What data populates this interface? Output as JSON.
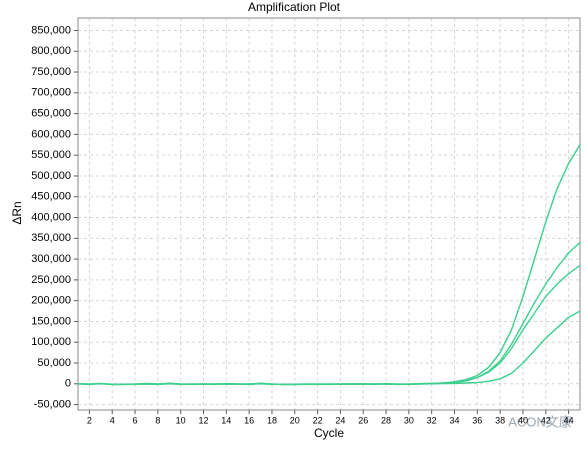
{
  "chart_data": {
    "type": "line",
    "title": "Amplification Plot",
    "x_label": "Cycle",
    "y_label": "ΔRn",
    "watermark": "ACON文康",
    "x": [
      1,
      2,
      3,
      4,
      5,
      6,
      7,
      8,
      9,
      10,
      11,
      12,
      13,
      14,
      15,
      16,
      17,
      18,
      19,
      20,
      21,
      22,
      23,
      24,
      25,
      26,
      27,
      28,
      29,
      30,
      31,
      32,
      33,
      34,
      35,
      36,
      37,
      38,
      39,
      40,
      41,
      42,
      43,
      44,
      45
    ],
    "series": [
      {
        "color": "#3ccf8e",
        "values": [
          0,
          -1000,
          1000,
          -1500,
          -1000,
          -500,
          1000,
          -1000,
          1500,
          -500,
          -1000,
          -500,
          -1000,
          0,
          -500,
          -1000,
          1500,
          -500,
          -2000,
          -1500,
          -1000,
          -500,
          -1000,
          -500,
          0,
          -500,
          -1000,
          500,
          -1500,
          -1000,
          0,
          1000,
          2000,
          5000,
          10000,
          20000,
          40000,
          75000,
          130000,
          210000,
          300000,
          390000,
          470000,
          530000,
          575000
        ]
      },
      {
        "color": "#3ccf8e",
        "values": [
          0,
          -1000,
          500,
          -1000,
          -1500,
          -1000,
          500,
          -500,
          1000,
          -1000,
          -500,
          -1000,
          -500,
          500,
          -1000,
          -500,
          1000,
          -1000,
          -1500,
          -1000,
          -500,
          -1000,
          -500,
          -1000,
          -500,
          0,
          -500,
          0,
          -1000,
          -500,
          500,
          1000,
          2000,
          4000,
          8000,
          15000,
          30000,
          55000,
          95000,
          145000,
          195000,
          240000,
          280000,
          315000,
          340000
        ]
      },
      {
        "color": "#3ccf8e",
        "values": [
          0,
          -500,
          0,
          -1500,
          -1000,
          -1500,
          0,
          -1000,
          500,
          -1500,
          -1000,
          -500,
          -1500,
          0,
          -500,
          -1500,
          500,
          -1500,
          -1000,
          -2000,
          -1000,
          -1500,
          -1000,
          -500,
          -1000,
          -500,
          -1500,
          0,
          -500,
          -1500,
          0,
          500,
          1500,
          3500,
          7000,
          15000,
          28000,
          50000,
          85000,
          130000,
          170000,
          210000,
          240000,
          265000,
          285000
        ]
      },
      {
        "color": "#3ccf8e",
        "values": [
          0,
          -1500,
          500,
          -2000,
          -1500,
          -1000,
          -500,
          -1500,
          0,
          -1000,
          -1500,
          -1000,
          -500,
          -1000,
          -1000,
          -500,
          0,
          -1000,
          -1500,
          -1000,
          -1500,
          -1000,
          -1500,
          -1000,
          -500,
          -1000,
          -500,
          -1000,
          -1500,
          -1000,
          -500,
          0,
          500,
          1000,
          2000,
          3000,
          6000,
          12000,
          25000,
          50000,
          80000,
          110000,
          135000,
          160000,
          175000
        ]
      }
    ],
    "xlim": [
      1,
      45
    ],
    "xticks": [
      2,
      4,
      6,
      8,
      10,
      12,
      14,
      16,
      18,
      20,
      22,
      24,
      26,
      28,
      30,
      32,
      34,
      36,
      38,
      40,
      42,
      44
    ],
    "ylim": [
      -63000,
      880000
    ],
    "yticks": [
      {
        "value": -50000,
        "label": "-50,000"
      },
      0,
      {
        "value": 50000,
        "label": "50,000"
      },
      {
        "value": 100000,
        "label": "100,000"
      },
      {
        "value": 150000,
        "label": "150,000"
      },
      {
        "value": 200000,
        "label": "200,000"
      },
      {
        "value": 250000,
        "label": "250,000"
      },
      {
        "value": 300000,
        "label": "300,000"
      },
      {
        "value": 350000,
        "label": "350,000"
      },
      {
        "value": 400000,
        "label": "400,000"
      },
      {
        "value": 450000,
        "label": "450,000"
      },
      {
        "value": 500000,
        "label": "500,000"
      },
      {
        "value": 550000,
        "label": "550,000"
      },
      {
        "value": 600000,
        "label": "600,000"
      },
      {
        "value": 650000,
        "label": "650,000"
      },
      {
        "value": 700000,
        "label": "700,000"
      },
      {
        "value": 750000,
        "label": "750,000"
      },
      {
        "value": 800000,
        "label": "800,000"
      },
      {
        "value": 850000,
        "label": "850,000"
      }
    ],
    "grid": true
  }
}
